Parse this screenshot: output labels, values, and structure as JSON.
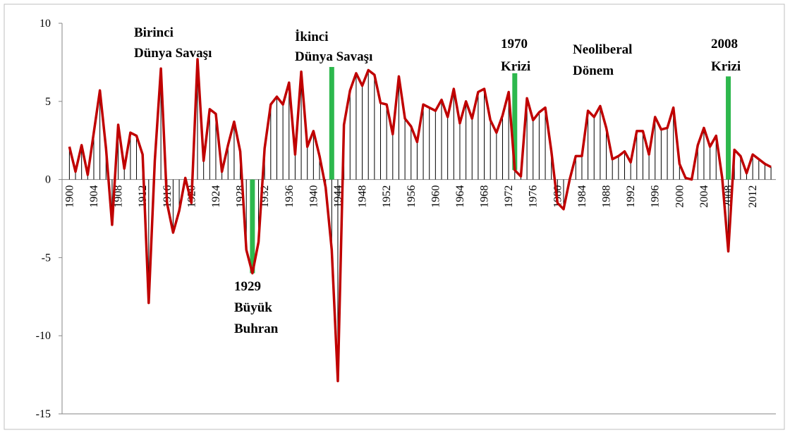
{
  "chart_data": {
    "type": "line",
    "x": [
      1900,
      1901,
      1902,
      1903,
      1904,
      1905,
      1906,
      1907,
      1908,
      1909,
      1910,
      1911,
      1912,
      1913,
      1914,
      1915,
      1916,
      1917,
      1918,
      1919,
      1920,
      1921,
      1922,
      1923,
      1924,
      1925,
      1926,
      1927,
      1928,
      1929,
      1930,
      1931,
      1932,
      1933,
      1934,
      1935,
      1936,
      1937,
      1938,
      1939,
      1940,
      1941,
      1942,
      1943,
      1944,
      1945,
      1946,
      1947,
      1948,
      1949,
      1950,
      1951,
      1952,
      1953,
      1954,
      1955,
      1956,
      1957,
      1958,
      1959,
      1960,
      1961,
      1962,
      1963,
      1964,
      1965,
      1966,
      1967,
      1968,
      1969,
      1970,
      1971,
      1972,
      1973,
      1974,
      1975,
      1976,
      1977,
      1978,
      1979,
      1980,
      1981,
      1982,
      1983,
      1984,
      1985,
      1986,
      1987,
      1988,
      1989,
      1990,
      1991,
      1992,
      1993,
      1994,
      1995,
      1996,
      1997,
      1998,
      1999,
      2000,
      2001,
      2002,
      2003,
      2004,
      2005,
      2006,
      2007,
      2008,
      2009,
      2010,
      2011,
      2012,
      2013,
      2014,
      2015
    ],
    "values": [
      2.1,
      0.5,
      2.2,
      0.3,
      3.0,
      5.7,
      2.0,
      -2.9,
      3.5,
      0.7,
      3.0,
      2.8,
      1.6,
      -7.9,
      1.2,
      7.1,
      -1.5,
      -3.4,
      -2.0,
      0.1,
      -1.5,
      7.7,
      1.2,
      4.5,
      4.2,
      0.5,
      2.2,
      3.7,
      1.8,
      -4.5,
      -6.0,
      -4.0,
      2.0,
      4.8,
      5.3,
      4.8,
      6.2,
      1.6,
      6.9,
      2.1,
      3.1,
      1.5,
      -0.5,
      -4.5,
      -12.9,
      3.5,
      5.7,
      6.8,
      6.0,
      7.0,
      6.7,
      4.9,
      4.8,
      2.9,
      6.6,
      3.9,
      3.4,
      2.4,
      4.8,
      4.6,
      4.4,
      5.1,
      4.0,
      5.8,
      3.6,
      5.0,
      3.9,
      5.6,
      5.8,
      3.8,
      3.0,
      4.1,
      5.6,
      0.6,
      0.2,
      5.2,
      3.8,
      4.3,
      4.6,
      1.8,
      -1.5,
      -1.9,
      0,
      1.5,
      1.5,
      4.4,
      4.0,
      4.7,
      3.3,
      1.3,
      1.5,
      1.8,
      1.1,
      3.1,
      3.1,
      1.6,
      4.0,
      3.2,
      3.3,
      4.6,
      1.0,
      0.1,
      0,
      2.2,
      3.3,
      2.1,
      2.8,
      0.1,
      -4.6,
      1.9,
      1.5,
      0.4,
      1.6,
      1.3,
      1.0,
      0.8
    ],
    "color": "#c00000",
    "drop_line_color": "#000000",
    "xlim": [
      1898.8,
      2015.8
    ],
    "xticks": [
      1900,
      1904,
      1908,
      1912,
      1916,
      1920,
      1924,
      1928,
      1932,
      1936,
      1940,
      1944,
      1948,
      1952,
      1956,
      1960,
      1964,
      1968,
      1972,
      1976,
      1980,
      1984,
      1988,
      1992,
      1996,
      2000,
      2004,
      2008,
      2012
    ],
    "ylim": [
      -15,
      10
    ],
    "yticks": [
      10,
      5,
      0,
      -5,
      -10,
      -15
    ],
    "markers": [
      {
        "x": 1930,
        "from": 0,
        "to": -6
      },
      {
        "x": 1943,
        "from": 0,
        "to": 7.2
      },
      {
        "x": 1973,
        "from": 0.6,
        "to": 6.8
      },
      {
        "x": 2008,
        "from": 0,
        "to": 6.6
      }
    ],
    "marker_color": "#2db84d",
    "annotations": [
      {
        "text": [
          "Birinci",
          "Dünya Savaşı"
        ]
      },
      {
        "text": [
          "1929",
          "Büyük",
          "Buhran"
        ]
      },
      {
        "text": [
          "İkinci",
          "Dünya Savaşı"
        ]
      },
      {
        "text": [
          "1970",
          "Krizi"
        ]
      },
      {
        "text": [
          "Neoliberal",
          "Dönem"
        ]
      },
      {
        "text": [
          "2008",
          "Krizi"
        ]
      }
    ]
  }
}
